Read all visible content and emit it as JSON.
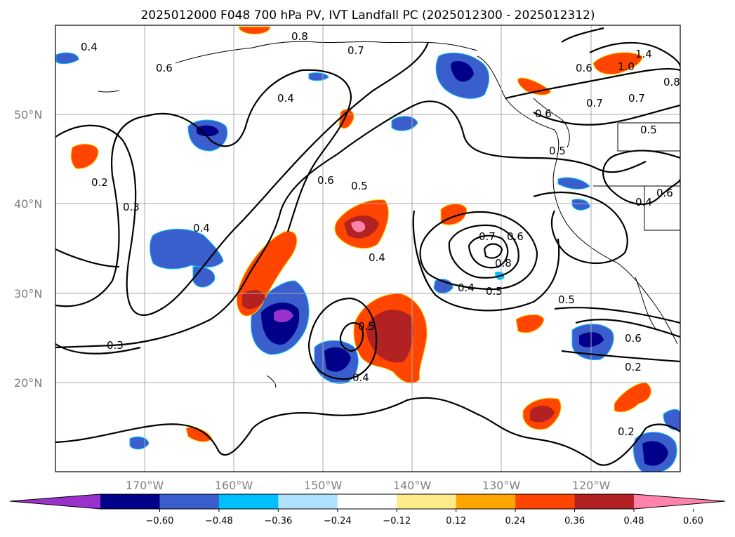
{
  "title": "2025012000 F048 700 hPa PV, IVT Landfall PC (2025012300 - 2025012312)",
  "lat_labels": [
    "50°N",
    "40°N",
    "30°N",
    "20°N"
  ],
  "lon_labels": [
    "170°W",
    "160°W",
    "150°W",
    "140°W",
    "130°W",
    "120°W"
  ],
  "colorbar": {
    "tick_labels": [
      "−0.60",
      "−0.48",
      "−0.36",
      "−0.24",
      "−0.12",
      "0.12",
      "0.24",
      "0.36",
      "0.48",
      "0.60"
    ],
    "colors": [
      "#9932cc",
      "#00008b",
      "#3a5fcd",
      "#00bfff",
      "#b0e2ff",
      "#ffffff",
      "#ffeb8a",
      "#ffa500",
      "#ff4500",
      "#b22222",
      "#ff82ab"
    ]
  },
  "contour_labels": [
    "0.4",
    "0.6",
    "0.8",
    "0.7",
    "0.4",
    "0.2",
    "0.3",
    "0.4",
    "0.6",
    "0.5",
    "0.4",
    "0.3",
    "0.7",
    "0.6",
    "0.8",
    "0.4",
    "0.5",
    "0.5",
    "0.4",
    "0.5",
    "0.6",
    "0.2",
    "0.2",
    "0.5",
    "0.4",
    "0.6",
    "0.7",
    "0.7",
    "0.5",
    "1.4",
    "1.0",
    "0.6",
    "0.6",
    "0.8"
  ],
  "map": {
    "lat_range": [
      10,
      60
    ],
    "lon_range": [
      -180,
      -110
    ],
    "gridlines": true
  }
}
